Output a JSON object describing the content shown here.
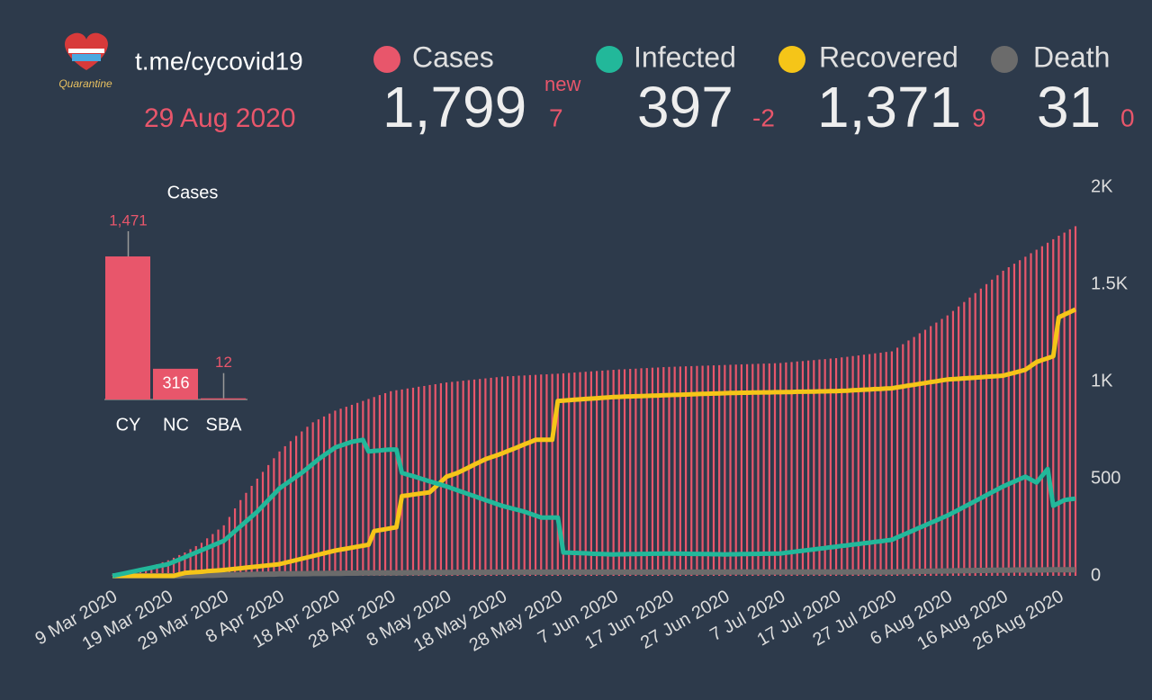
{
  "summary": {
    "source": "t.me/cycovid19",
    "date": "29 Aug 2020",
    "logo_text": "Quarantine",
    "new_label": "new",
    "stats": [
      {
        "total": "1,799",
        "change": "7"
      },
      {
        "total": "397",
        "change": "-2"
      },
      {
        "total": "1,371",
        "change": "9"
      },
      {
        "total": "31",
        "change": "0"
      }
    ]
  },
  "chart_data": [
    {
      "type": "combo",
      "categories": [
        "9 Mar 2020",
        null,
        null,
        null,
        null,
        null,
        null,
        null,
        null,
        null,
        "19 Mar 2020",
        null,
        null,
        null,
        null,
        null,
        null,
        null,
        null,
        null,
        "29 Mar 2020",
        null,
        null,
        null,
        null,
        null,
        null,
        null,
        null,
        null,
        "8 Apr 2020",
        null,
        null,
        null,
        null,
        null,
        null,
        null,
        null,
        null,
        "18 Apr 2020",
        null,
        null,
        null,
        null,
        null,
        null,
        null,
        null,
        null,
        "28 Apr 2020",
        null,
        null,
        null,
        null,
        null,
        null,
        null,
        null,
        null,
        "8 May 2020",
        null,
        null,
        null,
        null,
        null,
        null,
        null,
        null,
        null,
        "18 May 2020",
        null,
        null,
        null,
        null,
        null,
        null,
        null,
        null,
        null,
        "28 May 2020",
        null,
        null,
        null,
        null,
        null,
        null,
        null,
        null,
        null,
        "7 Jun 2020",
        null,
        null,
        null,
        null,
        null,
        null,
        null,
        null,
        null,
        "17 Jun 2020",
        null,
        null,
        null,
        null,
        null,
        null,
        null,
        null,
        null,
        "27 Jun 2020",
        null,
        null,
        null,
        null,
        null,
        null,
        null,
        null,
        null,
        "7 Jul 2020",
        null,
        null,
        null,
        null,
        null,
        null,
        null,
        null,
        null,
        "17 Jul 2020",
        null,
        null,
        null,
        null,
        null,
        null,
        null,
        null,
        null,
        "27 Jul 2020",
        null,
        null,
        null,
        null,
        null,
        null,
        null,
        null,
        null,
        "6 Aug 2020",
        null,
        null,
        null,
        null,
        null,
        null,
        null,
        null,
        null,
        "16 Aug 2020",
        null,
        null,
        null,
        null,
        null,
        null,
        null,
        null,
        null,
        "26 Aug 2020",
        null,
        null,
        null
      ],
      "ylim": [
        0,
        2000
      ],
      "yticks": [
        0,
        500,
        {
          "value": 1000,
          "label": "1K"
        },
        {
          "value": 1500,
          "label": "1.5K"
        },
        {
          "value": 2000,
          "label": "2K"
        }
      ],
      "series": [
        {
          "name": "Cases",
          "type": "bar",
          "color": "#e8566b",
          "values": [
            2,
            8,
            14,
            20,
            27,
            33,
            40,
            50,
            60,
            70,
            80,
            93,
            107,
            120,
            137,
            153,
            170,
            193,
            215,
            238,
            260,
            303,
            347,
            390,
            427,
            463,
            500,
            535,
            570,
            605,
            640,
            667,
            693,
            720,
            743,
            767,
            790,
            805,
            820,
            835,
            850,
            860,
            870,
            880,
            890,
            900,
            910,
            920,
            930,
            940,
            950,
            955,
            959,
            964,
            968,
            973,
            977,
            982,
            986,
            991,
            995,
            998,
            1001,
            1004,
            1007,
            1010,
            1013,
            1016,
            1019,
            1022,
            1025,
            1027,
            1028,
            1030,
            1031,
            1033,
            1034,
            1036,
            1037,
            1039,
            1040,
            1042,
            1044,
            1046,
            1048,
            1050,
            1052,
            1054,
            1056,
            1058,
            1060,
            1062,
            1063,
            1065,
            1066,
            1068,
            1069,
            1071,
            1072,
            1074,
            1075,
            1076,
            1077,
            1078,
            1079,
            1080,
            1081,
            1082,
            1083,
            1084,
            1085,
            1086,
            1087,
            1088,
            1089,
            1090,
            1091,
            1092,
            1093,
            1094,
            1095,
            1098,
            1100,
            1103,
            1105,
            1108,
            1110,
            1113,
            1115,
            1118,
            1120,
            1124,
            1127,
            1131,
            1134,
            1138,
            1141,
            1145,
            1148,
            1152,
            1155,
            1174,
            1192,
            1211,
            1229,
            1248,
            1266,
            1285,
            1303,
            1322,
            1340,
            1363,
            1386,
            1409,
            1432,
            1455,
            1478,
            1501,
            1524,
            1547,
            1570,
            1588,
            1606,
            1624,
            1642,
            1660,
            1678,
            1696,
            1714,
            1732,
            1750,
            1766,
            1783,
            1799
          ]
        },
        {
          "name": "Infected",
          "type": "line",
          "color": "#22b89a",
          "values": [
            0,
            6,
            12,
            18,
            24,
            30,
            36,
            42,
            48,
            54,
            60,
            72,
            84,
            96,
            108,
            120,
            132,
            144,
            156,
            168,
            180,
            205,
            230,
            255,
            280,
            305,
            330,
            360,
            390,
            420,
            450,
            470,
            490,
            510,
            530,
            553,
            577,
            600,
            620,
            640,
            660,
            670,
            680,
            690,
            695,
            700,
            640,
            643,
            645,
            648,
            650,
            650,
            530,
            521,
            513,
            504,
            495,
            486,
            478,
            469,
            460,
            450,
            440,
            430,
            420,
            410,
            400,
            390,
            380,
            370,
            360,
            353,
            345,
            338,
            330,
            320,
            310,
            300,
            300,
            300,
            300,
            120,
            119,
            118,
            117,
            116,
            114,
            113,
            112,
            111,
            110,
            111,
            111,
            112,
            112,
            113,
            113,
            114,
            114,
            115,
            115,
            115,
            114,
            114,
            113,
            113,
            112,
            112,
            111,
            111,
            110,
            111,
            111,
            112,
            112,
            113,
            113,
            114,
            114,
            115,
            115,
            119,
            122,
            126,
            129,
            133,
            136,
            140,
            143,
            147,
            150,
            154,
            157,
            161,
            164,
            168,
            171,
            175,
            178,
            182,
            185,
            198,
            210,
            223,
            235,
            248,
            260,
            273,
            285,
            298,
            310,
            325,
            340,
            355,
            370,
            385,
            400,
            415,
            430,
            445,
            460,
            473,
            485,
            498,
            510,
            495,
            480,
            515,
            550,
            360,
            375,
            390,
            394,
            397
          ]
        },
        {
          "name": "Recovered",
          "type": "line",
          "color": "#f5c518",
          "values": [
            0,
            0,
            0,
            0,
            0,
            0,
            0,
            0,
            0,
            0,
            0,
            0,
            8,
            15,
            17,
            19,
            21,
            24,
            26,
            28,
            30,
            33,
            36,
            39,
            42,
            45,
            48,
            51,
            54,
            57,
            60,
            67,
            74,
            81,
            88,
            95,
            102,
            109,
            116,
            123,
            130,
            135,
            140,
            145,
            150,
            155,
            160,
            230,
            235,
            240,
            245,
            250,
            410,
            414,
            418,
            422,
            426,
            430,
            457,
            483,
            510,
            520,
            530,
            544,
            558,
            572,
            586,
            600,
            610,
            620,
            630,
            642,
            653,
            665,
            677,
            688,
            700,
            700,
            700,
            700,
            900,
            902,
            904,
            906,
            908,
            910,
            912,
            914,
            916,
            918,
            920,
            921,
            922,
            923,
            924,
            925,
            926,
            927,
            928,
            929,
            930,
            931,
            932,
            933,
            934,
            935,
            936,
            937,
            938,
            939,
            940,
            941,
            941,
            942,
            942,
            943,
            943,
            944,
            944,
            945,
            945,
            946,
            946,
            947,
            947,
            948,
            948,
            949,
            949,
            950,
            950,
            952,
            953,
            955,
            956,
            958,
            959,
            961,
            962,
            964,
            965,
            970,
            974,
            979,
            983,
            988,
            992,
            997,
            1001,
            1006,
            1010,
            1012,
            1014,
            1016,
            1018,
            1020,
            1022,
            1024,
            1026,
            1028,
            1030,
            1038,
            1045,
            1053,
            1060,
            1080,
            1100,
            1110,
            1120,
            1130,
            1330,
            1344,
            1357,
            1371
          ]
        },
        {
          "name": "Death",
          "type": "line",
          "color": "#6b6b6b",
          "values": [
            0,
            0,
            0,
            0,
            0,
            0,
            0,
            0,
            0,
            0,
            0,
            0,
            0,
            1,
            1,
            2,
            2,
            3,
            3,
            4,
            5,
            5,
            6,
            6,
            7,
            7,
            8,
            8,
            9,
            9,
            10,
            10,
            10,
            11,
            11,
            11,
            12,
            12,
            12,
            13,
            13,
            13,
            14,
            14,
            14,
            15,
            15,
            15,
            15,
            15,
            15,
            15,
            15,
            16,
            16,
            16,
            16,
            17,
            17,
            17,
            17,
            17,
            18,
            18,
            18,
            18,
            18,
            18,
            19,
            19,
            19,
            19,
            19,
            19,
            19,
            19,
            19,
            19,
            19,
            19,
            19,
            19,
            19,
            19,
            19,
            19,
            19,
            19,
            19,
            19,
            19,
            19,
            19,
            19,
            19,
            19,
            19,
            19,
            19,
            19,
            19,
            19,
            19,
            19,
            19,
            19,
            19,
            19,
            19,
            19,
            19,
            20,
            20,
            20,
            20,
            20,
            20,
            20,
            20,
            20,
            20,
            20,
            20,
            20,
            20,
            20,
            20,
            20,
            20,
            20,
            20,
            20,
            20,
            20,
            20,
            20,
            20,
            20,
            20,
            20,
            20,
            21,
            21,
            22,
            22,
            23,
            23,
            24,
            24,
            25,
            25,
            26,
            26,
            27,
            27,
            28,
            28,
            28,
            29,
            29,
            29,
            29,
            30,
            30,
            30,
            30,
            30,
            30,
            31,
            31,
            31,
            31,
            31,
            31
          ]
        }
      ]
    },
    {
      "type": "bar",
      "title": "Cases",
      "color": "#e8566b",
      "categories": [
        "CY",
        "NC",
        "SBA"
      ],
      "values": [
        1471,
        316,
        12
      ],
      "value_labels": [
        "1,471",
        "316",
        "12"
      ]
    }
  ]
}
